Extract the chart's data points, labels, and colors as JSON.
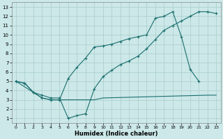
{
  "xlabel": "Humidex (Indice chaleur)",
  "bg_color": "#cce8e8",
  "grid_color": "#aacccc",
  "line_color": "#1a6e6e",
  "xlim": [
    -0.5,
    23.5
  ],
  "ylim": [
    0.5,
    13.5
  ],
  "xticks": [
    0,
    1,
    2,
    3,
    4,
    5,
    6,
    7,
    8,
    9,
    10,
    11,
    12,
    13,
    14,
    15,
    16,
    17,
    18,
    19,
    20,
    21,
    22,
    23
  ],
  "yticks": [
    1,
    2,
    3,
    4,
    5,
    6,
    7,
    8,
    9,
    10,
    11,
    12,
    13
  ],
  "line1_x": [
    0,
    1,
    2,
    3,
    4,
    5,
    6,
    7,
    8,
    9,
    10,
    11,
    12,
    13,
    14,
    15,
    16,
    17,
    18,
    19,
    20,
    21,
    22,
    23
  ],
  "line1_y": [
    5.0,
    4.8,
    3.8,
    3.5,
    3.2,
    3.2,
    1.0,
    1.3,
    1.5,
    4.2,
    5.5,
    6.2,
    6.8,
    7.2,
    7.7,
    8.5,
    9.5,
    10.5,
    11.0,
    11.5,
    12.0,
    12.5,
    12.5,
    12.3
  ],
  "line2_x": [
    0,
    1,
    2,
    3,
    4,
    5,
    6,
    7,
    8,
    9,
    10,
    11,
    12,
    13,
    14,
    15,
    16,
    17,
    18,
    19,
    20,
    21
  ],
  "line2_y": [
    5.0,
    4.8,
    3.8,
    3.2,
    3.0,
    3.0,
    5.3,
    6.5,
    7.5,
    8.7,
    8.8,
    9.0,
    9.3,
    9.6,
    9.8,
    10.0,
    11.8,
    12.0,
    12.5,
    9.8,
    6.3,
    5.0
  ],
  "line3_x": [
    0,
    2,
    3,
    4,
    5,
    9,
    10,
    22,
    23
  ],
  "line3_y": [
    5.0,
    3.8,
    3.2,
    3.0,
    3.0,
    3.0,
    3.2,
    3.5,
    3.5
  ]
}
